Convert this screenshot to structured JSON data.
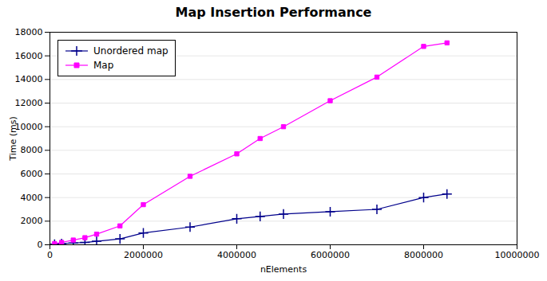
{
  "chart_data": {
    "type": "line",
    "title": "Map Insertion Performance",
    "x_label": "nElements",
    "y_label": "Time (ms)",
    "xlim": [
      0,
      10000000
    ],
    "ylim": [
      0,
      18000
    ],
    "xticks": [
      0,
      2000000,
      4000000,
      6000000,
      8000000,
      10000000
    ],
    "yticks": [
      0,
      2000,
      4000,
      6000,
      8000,
      10000,
      12000,
      14000,
      16000,
      18000
    ],
    "grid": "y",
    "legend": "upper left",
    "x": [
      100000,
      250000,
      500000,
      750000,
      1000000,
      1500000,
      2000000,
      3000000,
      4000000,
      4500000,
      5000000,
      6000000,
      7000000,
      8000000,
      8500000
    ],
    "series": [
      {
        "name": "Unordered map",
        "color": "#00008B",
        "marker": "plus",
        "line_style": "solid",
        "values": [
          50,
          100,
          150,
          200,
          300,
          500,
          1000,
          1500,
          2200,
          2400,
          2600,
          2800,
          3000,
          4000,
          4300
        ]
      },
      {
        "name": "Map",
        "color": "#FF00FF",
        "marker": "square",
        "line_style": "solid",
        "values": [
          100,
          200,
          400,
          600,
          900,
          1600,
          3400,
          5800,
          7700,
          9000,
          10000,
          12200,
          14200,
          16800,
          17100
        ]
      }
    ]
  }
}
